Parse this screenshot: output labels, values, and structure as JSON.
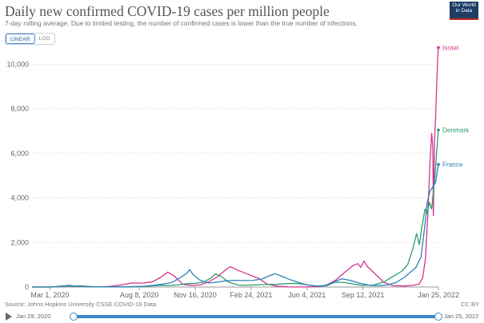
{
  "header": {
    "title": "Daily new confirmed COVID-19 cases per million people",
    "subtitle": "7-day rolling average. Due to limited testing, the number of confirmed cases is lower than the true number of infections.",
    "logo_line1": "Our World",
    "logo_line2": "in Data"
  },
  "controls": {
    "linear_label": "LINEAR",
    "log_label": "LOG",
    "selected": "linear"
  },
  "footer": {
    "source": "Source: Johns Hopkins University CSSE COVID-19 Data",
    "license": "CC BY"
  },
  "timeline": {
    "start_label": "Jan 29, 2020",
    "end_label": "Jan 25, 2022",
    "play_icon": "play-icon"
  },
  "chart_data": {
    "type": "line",
    "title": "Daily new confirmed COVID-19 cases per million people",
    "xlabel": "",
    "ylabel": "",
    "xlim": [
      "2020-01-29",
      "2022-01-25"
    ],
    "ylim": [
      0,
      10800
    ],
    "y_ticks": [
      0,
      2000,
      4000,
      6000,
      8000,
      10000
    ],
    "y_tick_labels": [
      "0",
      "2,000",
      "4,000",
      "6,000",
      "8,000",
      "10,000"
    ],
    "x_ticks": [
      "2020-03-01",
      "2020-08-08",
      "2020-11-16",
      "2021-02-24",
      "2021-06-04",
      "2021-09-12",
      "2022-01-25"
    ],
    "x_tick_labels": [
      "Mar 1, 2020",
      "Aug 8, 2020",
      "Nov 16, 2020",
      "Feb 24, 2021",
      "Jun 4, 2021",
      "Sep 12, 2021",
      "Jan 25, 2022"
    ],
    "grid": "horizontal dashed",
    "legend": "end-of-line labels",
    "series": [
      {
        "name": "Israel",
        "color": "#d6338f",
        "points": [
          [
            "2020-01-29",
            0
          ],
          [
            "2020-03-01",
            0
          ],
          [
            "2020-03-20",
            15
          ],
          [
            "2020-04-05",
            70
          ],
          [
            "2020-04-25",
            25
          ],
          [
            "2020-05-20",
            3
          ],
          [
            "2020-06-15",
            25
          ],
          [
            "2020-07-05",
            90
          ],
          [
            "2020-07-25",
            180
          ],
          [
            "2020-08-15",
            180
          ],
          [
            "2020-09-01",
            240
          ],
          [
            "2020-09-15",
            430
          ],
          [
            "2020-09-28",
            670
          ],
          [
            "2020-10-10",
            480
          ],
          [
            "2020-10-25",
            120
          ],
          [
            "2020-11-10",
            70
          ],
          [
            "2020-11-25",
            95
          ],
          [
            "2020-12-10",
            230
          ],
          [
            "2020-12-25",
            450
          ],
          [
            "2021-01-10",
            780
          ],
          [
            "2021-01-18",
            920
          ],
          [
            "2021-01-30",
            760
          ],
          [
            "2021-02-12",
            640
          ],
          [
            "2021-02-26",
            500
          ],
          [
            "2021-03-10",
            380
          ],
          [
            "2021-03-25",
            130
          ],
          [
            "2021-04-10",
            40
          ],
          [
            "2021-05-01",
            8
          ],
          [
            "2021-06-01",
            2
          ],
          [
            "2021-06-25",
            20
          ],
          [
            "2021-07-10",
            100
          ],
          [
            "2021-07-25",
            300
          ],
          [
            "2021-08-10",
            650
          ],
          [
            "2021-08-25",
            960
          ],
          [
            "2021-09-03",
            1050
          ],
          [
            "2021-09-08",
            880
          ],
          [
            "2021-09-14",
            1170
          ],
          [
            "2021-09-20",
            920
          ],
          [
            "2021-10-05",
            560
          ],
          [
            "2021-10-20",
            200
          ],
          [
            "2021-11-05",
            60
          ],
          [
            "2021-11-25",
            45
          ],
          [
            "2021-12-10",
            70
          ],
          [
            "2021-12-22",
            140
          ],
          [
            "2021-12-28",
            420
          ],
          [
            "2022-01-02",
            1300
          ],
          [
            "2022-01-06",
            3200
          ],
          [
            "2022-01-10",
            5600
          ],
          [
            "2022-01-13",
            6900
          ],
          [
            "2022-01-15",
            6300
          ],
          [
            "2022-01-16",
            3200
          ],
          [
            "2022-01-18",
            6500
          ],
          [
            "2022-01-20",
            7600
          ],
          [
            "2022-01-22",
            9200
          ],
          [
            "2022-01-24",
            10400
          ],
          [
            "2022-01-25",
            10750
          ]
        ]
      },
      {
        "name": "Denmark",
        "color": "#2b9e6b",
        "points": [
          [
            "2020-01-29",
            0
          ],
          [
            "2020-03-01",
            0
          ],
          [
            "2020-03-20",
            20
          ],
          [
            "2020-04-05",
            40
          ],
          [
            "2020-05-01",
            25
          ],
          [
            "2020-06-01",
            8
          ],
          [
            "2020-07-01",
            5
          ],
          [
            "2020-08-01",
            15
          ],
          [
            "2020-08-25",
            40
          ],
          [
            "2020-09-15",
            80
          ],
          [
            "2020-10-01",
            70
          ],
          [
            "2020-10-15",
            95
          ],
          [
            "2020-11-01",
            150
          ],
          [
            "2020-11-15",
            160
          ],
          [
            "2020-12-01",
            220
          ],
          [
            "2020-12-15",
            420
          ],
          [
            "2020-12-22",
            590
          ],
          [
            "2021-01-01",
            480
          ],
          [
            "2021-01-15",
            220
          ],
          [
            "2021-02-01",
            90
          ],
          [
            "2021-02-15",
            75
          ],
          [
            "2021-03-01",
            95
          ],
          [
            "2021-03-20",
            110
          ],
          [
            "2021-04-10",
            120
          ],
          [
            "2021-04-25",
            150
          ],
          [
            "2021-05-15",
            160
          ],
          [
            "2021-06-01",
            110
          ],
          [
            "2021-06-20",
            50
          ],
          [
            "2021-07-05",
            60
          ],
          [
            "2021-07-25",
            220
          ],
          [
            "2021-08-10",
            200
          ],
          [
            "2021-08-25",
            140
          ],
          [
            "2021-09-10",
            80
          ],
          [
            "2021-10-01",
            90
          ],
          [
            "2021-10-20",
            230
          ],
          [
            "2021-11-05",
            480
          ],
          [
            "2021-11-20",
            700
          ],
          [
            "2021-12-01",
            1000
          ],
          [
            "2021-12-10",
            1700
          ],
          [
            "2021-12-17",
            2400
          ],
          [
            "2021-12-22",
            1900
          ],
          [
            "2021-12-26",
            2600
          ],
          [
            "2022-01-01",
            3500
          ],
          [
            "2022-01-05",
            3300
          ],
          [
            "2022-01-09",
            3800
          ],
          [
            "2022-01-13",
            3500
          ],
          [
            "2022-01-16",
            4300
          ],
          [
            "2022-01-19",
            5000
          ],
          [
            "2022-01-22",
            6100
          ],
          [
            "2022-01-25",
            7050
          ]
        ]
      },
      {
        "name": "France",
        "color": "#2e82b8",
        "points": [
          [
            "2020-01-29",
            0
          ],
          [
            "2020-03-01",
            0
          ],
          [
            "2020-03-25",
            50
          ],
          [
            "2020-04-05",
            75
          ],
          [
            "2020-04-10",
            40
          ],
          [
            "2020-04-25",
            55
          ],
          [
            "2020-05-15",
            15
          ],
          [
            "2020-06-15",
            6
          ],
          [
            "2020-07-15",
            10
          ],
          [
            "2020-08-15",
            30
          ],
          [
            "2020-09-01",
            70
          ],
          [
            "2020-09-20",
            140
          ],
          [
            "2020-10-05",
            200
          ],
          [
            "2020-10-20",
            420
          ],
          [
            "2020-11-01",
            620
          ],
          [
            "2020-11-06",
            780
          ],
          [
            "2020-11-12",
            560
          ],
          [
            "2020-11-25",
            300
          ],
          [
            "2020-12-10",
            180
          ],
          [
            "2020-12-25",
            220
          ],
          [
            "2021-01-10",
            280
          ],
          [
            "2021-01-25",
            300
          ],
          [
            "2021-02-10",
            290
          ],
          [
            "2021-02-28",
            300
          ],
          [
            "2021-03-15",
            360
          ],
          [
            "2021-03-30",
            520
          ],
          [
            "2021-04-08",
            600
          ],
          [
            "2021-04-20",
            480
          ],
          [
            "2021-05-05",
            330
          ],
          [
            "2021-05-20",
            200
          ],
          [
            "2021-06-05",
            90
          ],
          [
            "2021-06-25",
            35
          ],
          [
            "2021-07-10",
            60
          ],
          [
            "2021-07-25",
            250
          ],
          [
            "2021-08-05",
            370
          ],
          [
            "2021-08-20",
            300
          ],
          [
            "2021-09-05",
            180
          ],
          [
            "2021-09-25",
            70
          ],
          [
            "2021-10-10",
            65
          ],
          [
            "2021-10-25",
            90
          ],
          [
            "2021-11-10",
            200
          ],
          [
            "2021-11-25",
            430
          ],
          [
            "2021-12-05",
            650
          ],
          [
            "2021-12-15",
            850
          ],
          [
            "2021-12-25",
            1350
          ],
          [
            "2022-01-01",
            2800
          ],
          [
            "2022-01-05",
            3800
          ],
          [
            "2022-01-10",
            4300
          ],
          [
            "2022-01-15",
            4500
          ],
          [
            "2022-01-20",
            4700
          ],
          [
            "2022-01-25",
            5500
          ]
        ]
      }
    ]
  }
}
